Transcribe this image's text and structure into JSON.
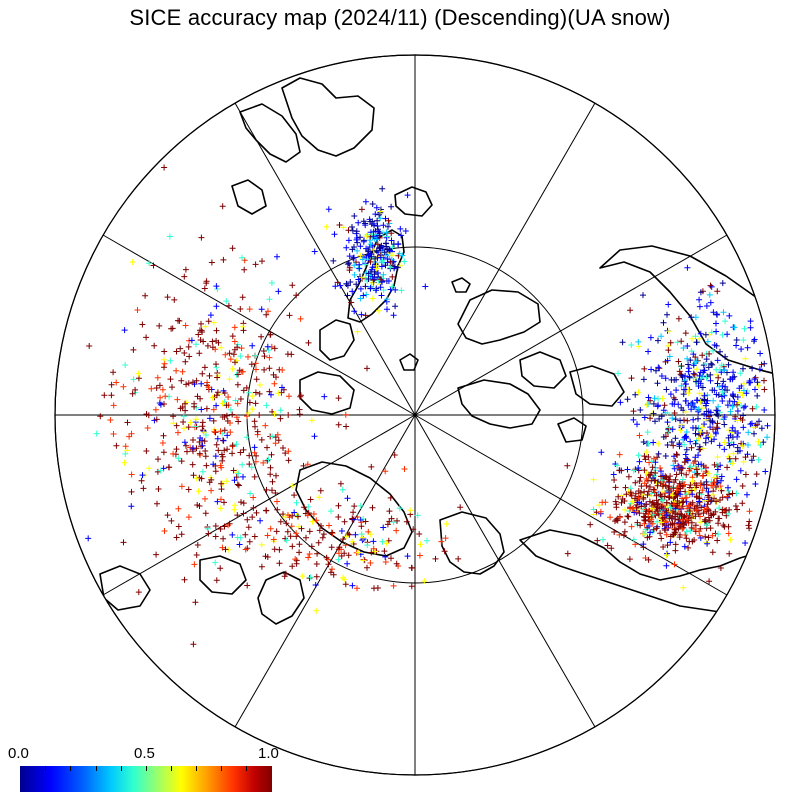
{
  "title": "SICE accuracy map (2024/11) (Descending)(UA snow)",
  "colorbar": {
    "label_min": "0.0",
    "label_mid": "0.5",
    "label_max": "1.0",
    "min": 0.0,
    "max": 1.0,
    "colormap": "jet",
    "colors": [
      "#00008f",
      "#0000ff",
      "#00c8ff",
      "#30ffd0",
      "#ffff00",
      "#ff3000",
      "#800000"
    ]
  },
  "map": {
    "projection": "polar stereographic (north)",
    "meridian_spacing_deg": 30,
    "inner_circle": "arctic",
    "point_marker": "+",
    "coast_color": "#000000",
    "background": "#ffffff"
  },
  "clusters": [
    {
      "region": "atlantic-europe",
      "mix": "mostly-high",
      "count": 520
    },
    {
      "region": "scandinavia-baltic",
      "mix": "mostly-low",
      "count": 260
    },
    {
      "region": "north-america-east",
      "mix": "mostly-low",
      "count": 540
    },
    {
      "region": "north-america-west",
      "mix": "mostly-high",
      "count": 620
    },
    {
      "region": "north-asia",
      "mix": "mostly-high",
      "count": 200
    }
  ]
}
